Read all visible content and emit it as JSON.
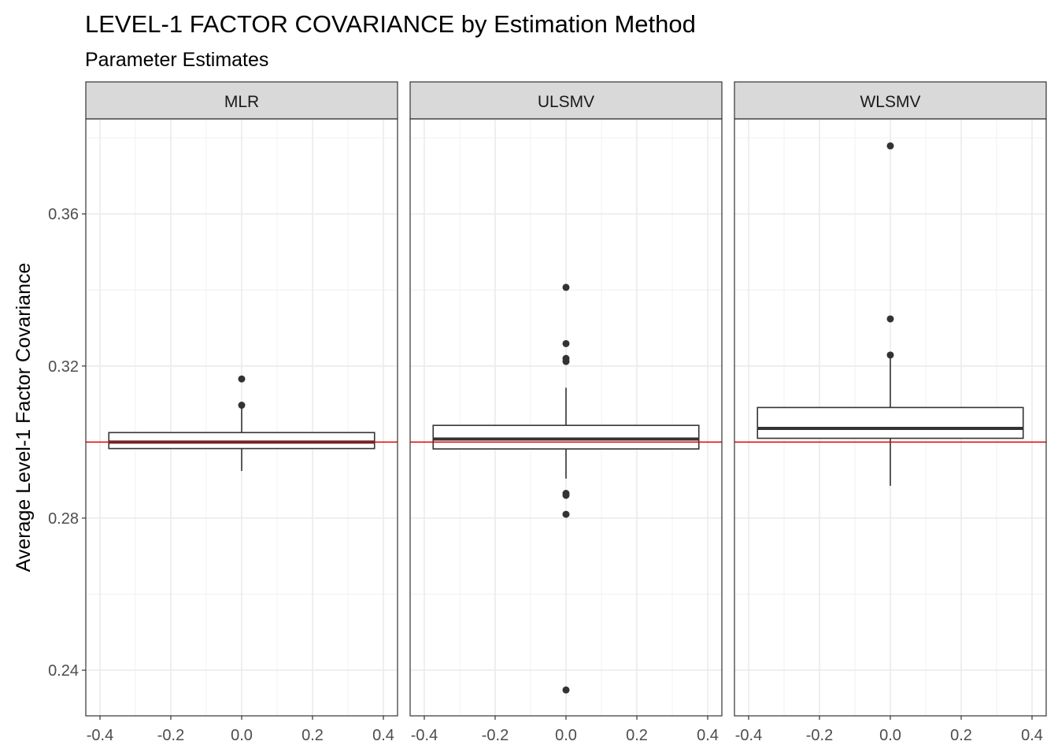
{
  "chart_data": {
    "type": "boxplot",
    "title": "LEVEL-1 FACTOR COVARIANCE by Estimation Method",
    "subtitle": "Parameter Estimates",
    "xlabel": "",
    "ylabel": "Average Level-1 Factor Covariance",
    "xlim": [
      -0.4,
      0.4
    ],
    "ylim": [
      0.228,
      0.385
    ],
    "x_ticks": [
      -0.4,
      -0.2,
      0.0,
      0.2,
      0.4
    ],
    "x_tick_labels": [
      "-0.4",
      "-0.2",
      "0.0",
      "0.2",
      "0.4"
    ],
    "y_ticks": [
      0.24,
      0.28,
      0.32,
      0.36
    ],
    "y_tick_labels": [
      "0.24",
      "0.28",
      "0.32",
      "0.36"
    ],
    "grid": true,
    "reference_line": {
      "y": 0.3,
      "color": "#e00000"
    },
    "box_color": "#333333",
    "outlier_color": "#333333",
    "facets": [
      {
        "label": "MLR",
        "q1": 0.2983,
        "median": 0.3,
        "q3": 0.3025,
        "whisker_low": 0.2924,
        "whisker_high": 0.3097,
        "outliers": [
          0.3097,
          0.3166
        ]
      },
      {
        "label": "ULSMV",
        "q1": 0.2982,
        "median": 0.3008,
        "q3": 0.3044,
        "whisker_low": 0.2904,
        "whisker_high": 0.3143,
        "outliers": [
          0.2348,
          0.281,
          0.286,
          0.2865,
          0.3212,
          0.322,
          0.3259,
          0.3407
        ]
      },
      {
        "label": "WLSMV",
        "q1": 0.301,
        "median": 0.3036,
        "q3": 0.3091,
        "whisker_low": 0.2885,
        "whisker_high": 0.322,
        "outliers": [
          0.3229,
          0.3324,
          0.3779
        ]
      }
    ]
  }
}
